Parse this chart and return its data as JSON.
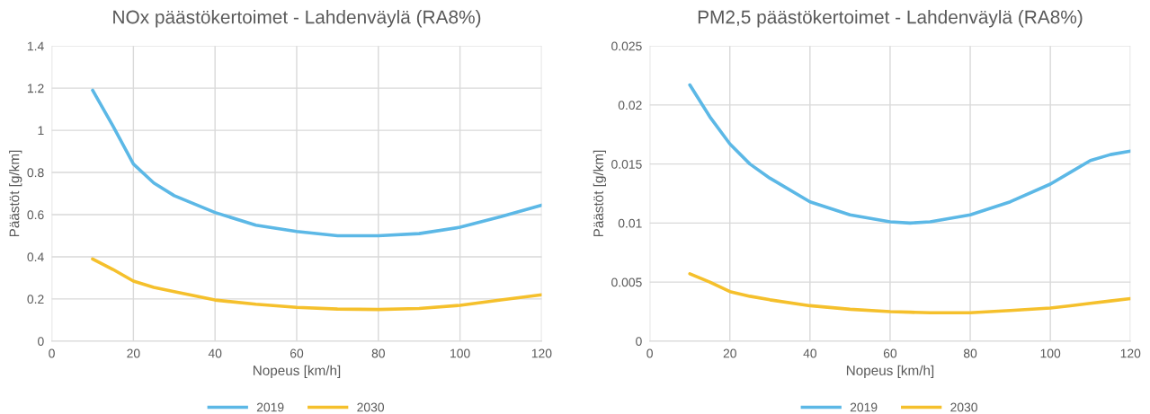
{
  "chart_data": [
    {
      "type": "line",
      "title": "NOx päästökertoimet - Lahdenväylä (RA8%)",
      "xlabel": "Nopeus [km/h]",
      "ylabel": "Päästöt [g/km]",
      "x": [
        10,
        15,
        20,
        25,
        30,
        40,
        50,
        60,
        70,
        80,
        90,
        100,
        110,
        120
      ],
      "series": [
        {
          "name": "2019",
          "color": "#5cb8e6",
          "values": [
            1.19,
            1.02,
            0.84,
            0.75,
            0.69,
            0.61,
            0.55,
            0.52,
            0.5,
            0.5,
            0.51,
            0.54,
            0.59,
            0.645
          ]
        },
        {
          "name": "2030",
          "color": "#f5c02c",
          "values": [
            0.39,
            0.34,
            0.285,
            0.255,
            0.235,
            0.195,
            0.175,
            0.16,
            0.152,
            0.15,
            0.155,
            0.17,
            0.195,
            0.22
          ]
        }
      ],
      "xlim": [
        0,
        120
      ],
      "xticks": [
        0,
        20,
        40,
        60,
        80,
        100,
        120
      ],
      "ylim": [
        0,
        1.4
      ],
      "yticks": [
        0,
        0.2,
        0.4,
        0.6,
        0.8,
        1,
        1.2,
        1.4
      ],
      "grid": true,
      "legend": "bottom",
      "marker": "none",
      "line_style": "solid"
    },
    {
      "type": "line",
      "title": "PM2,5 päästökertoimet - Lahdenväylä (RA8%)",
      "xlabel": "Nopeus [km/h]",
      "ylabel": "Päästöt [g/km]",
      "x": [
        10,
        15,
        20,
        25,
        30,
        40,
        50,
        60,
        65,
        70,
        80,
        90,
        100,
        105,
        110,
        115,
        120
      ],
      "series": [
        {
          "name": "2019",
          "color": "#5cb8e6",
          "values": [
            0.0217,
            0.019,
            0.0167,
            0.015,
            0.0138,
            0.0118,
            0.0107,
            0.0101,
            0.01,
            0.0101,
            0.0107,
            0.0118,
            0.0133,
            0.0143,
            0.0153,
            0.0158,
            0.0161
          ]
        },
        {
          "name": "2030",
          "color": "#f5c02c",
          "values": [
            0.0057,
            0.005,
            0.0042,
            0.0038,
            0.0035,
            0.003,
            0.0027,
            0.0025,
            0.00245,
            0.0024,
            0.0024,
            0.0026,
            0.0028,
            0.003,
            0.0032,
            0.0034,
            0.0036
          ]
        }
      ],
      "xlim": [
        0,
        120
      ],
      "xticks": [
        0,
        20,
        40,
        60,
        80,
        100,
        120
      ],
      "ylim": [
        0,
        0.025
      ],
      "yticks": [
        0,
        0.005,
        0.01,
        0.015,
        0.02,
        0.025
      ],
      "grid": true,
      "legend": "bottom",
      "marker": "none",
      "line_style": "solid"
    }
  ]
}
